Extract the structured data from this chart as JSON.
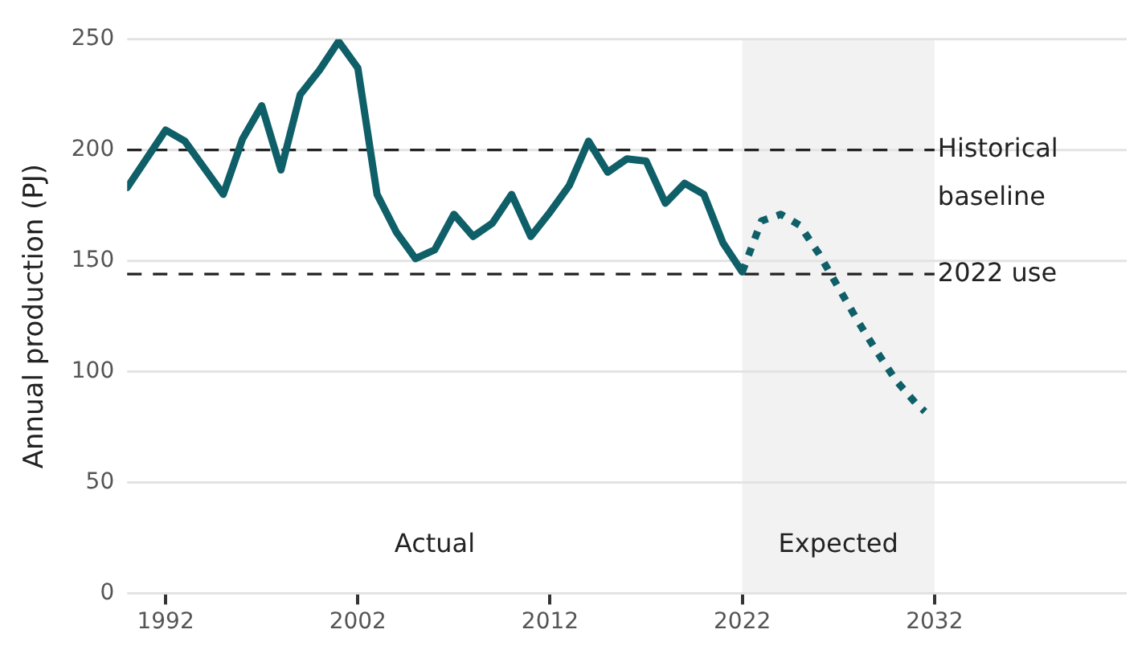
{
  "chart_data": {
    "type": "line",
    "ylabel": "Annual production (PJ)",
    "xlim": [
      1990,
      2042
    ],
    "xticks": [
      1992,
      2002,
      2012,
      2022,
      2032
    ],
    "ylim": [
      0,
      250
    ],
    "yticks": [
      0,
      50,
      100,
      150,
      200,
      250
    ],
    "grid": "y",
    "marker": "none",
    "series": [
      {
        "color": "#0f5f68",
        "line_style": "solid",
        "x": [
          1990,
          1992,
          1993,
          1995,
          1996,
          1997,
          1998,
          1999,
          2000,
          2001,
          2002,
          2003,
          2004,
          2005,
          2006,
          2007,
          2008,
          2009,
          2010,
          2011,
          2012,
          2013,
          2014,
          2015,
          2016,
          2017,
          2018,
          2019,
          2020,
          2021,
          2022
        ],
        "values": [
          183,
          209,
          204,
          180,
          205,
          220,
          191,
          225,
          236,
          249,
          237,
          180,
          163,
          151,
          155,
          171,
          161,
          167,
          180,
          161,
          172,
          184,
          204,
          190,
          196,
          195,
          176,
          185,
          180,
          158,
          145
        ]
      },
      {
        "color": "#0f5f68",
        "line_style": "dotted",
        "x": [
          2022,
          2023,
          2024,
          2025,
          2026,
          2027,
          2028,
          2029,
          2030,
          2031,
          2031.5
        ],
        "values": [
          145,
          168,
          171,
          166,
          153,
          138,
          123,
          109,
          96,
          86,
          82
        ]
      }
    ],
    "ref_lines": [
      {
        "axis": "y",
        "value": 200,
        "label": "Historical baseline",
        "color": "#222222",
        "line_style": "dashed"
      },
      {
        "axis": "y",
        "value": 144,
        "label": "2022 use",
        "color": "#222222",
        "line_style": "dashed"
      }
    ],
    "bands": [
      {
        "axis": "x",
        "from": 2022,
        "to": 2032,
        "label": "Expected",
        "color": "#f2f2f2"
      }
    ],
    "annotations": [
      "Actual"
    ]
  }
}
